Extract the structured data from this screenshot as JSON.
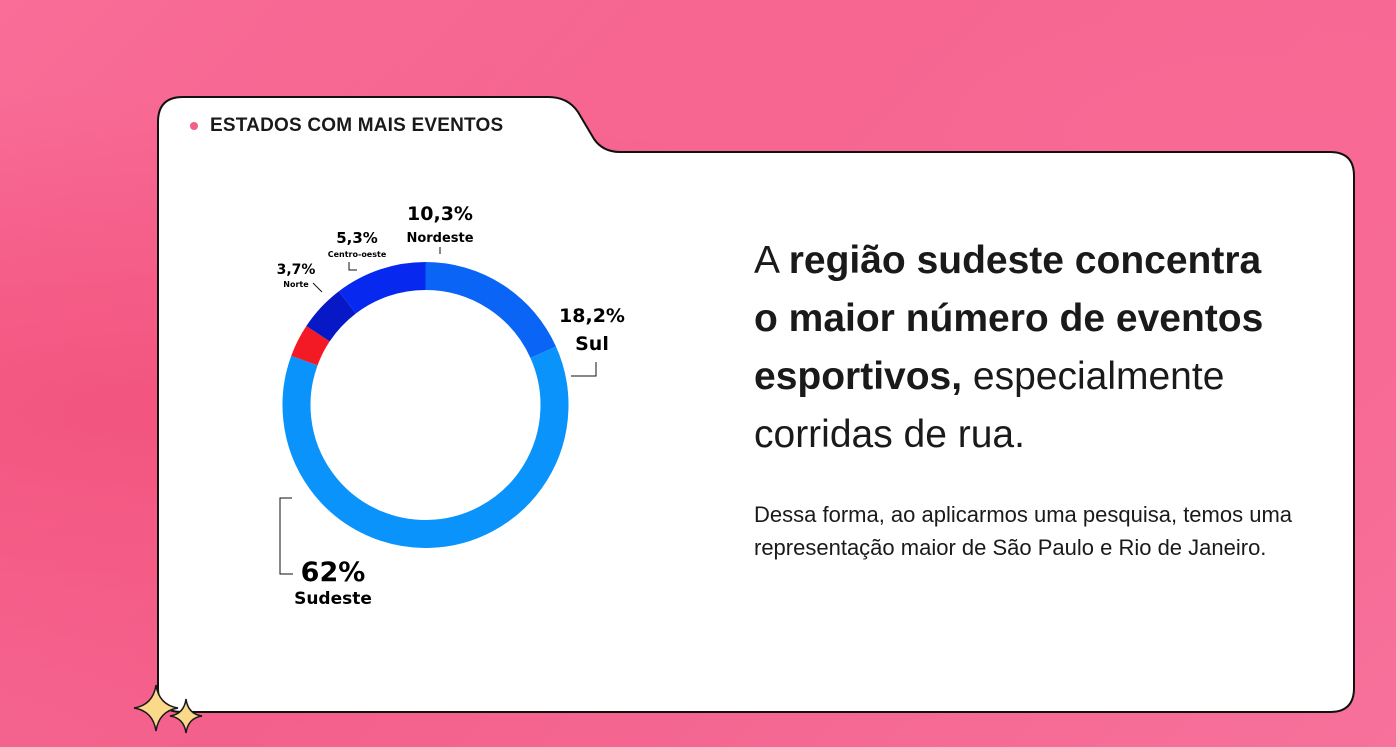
{
  "card": {
    "tab_label": "ESTADOS COM MAIS EVENTOS",
    "tab_dot_color": "#f2608a"
  },
  "headline": {
    "part1": "A ",
    "bold1": "região sudeste concentra o maior número de eventos esportivos,",
    "part2": " especialmente corridas de rua."
  },
  "body_text": "Dessa forma, ao aplicarmos uma pesquisa, temos uma representação maior de São Paulo e Rio de Janeiro.",
  "chart_data": {
    "type": "pie",
    "style": "donut",
    "slices": [
      {
        "label": "Sul",
        "value": 18.2,
        "value_label": "18,2%",
        "color": "#0a65f7"
      },
      {
        "label": "Sudeste",
        "value": 62,
        "value_label": "62%",
        "color": "#0a93fb"
      },
      {
        "label": "Norte",
        "value": 3.7,
        "value_label": "3,7%",
        "color": "#f41a25"
      },
      {
        "label": "Centro-oeste",
        "value": 5.3,
        "value_label": "5,3%",
        "color": "#0718c6"
      },
      {
        "label": "Nordeste",
        "value": 10.3,
        "value_label": "10,3%",
        "color": "#0628ef"
      }
    ]
  },
  "decor": {
    "sparkle_icon": "sparkle-icon",
    "sparkle_color": "#fbd98a"
  }
}
